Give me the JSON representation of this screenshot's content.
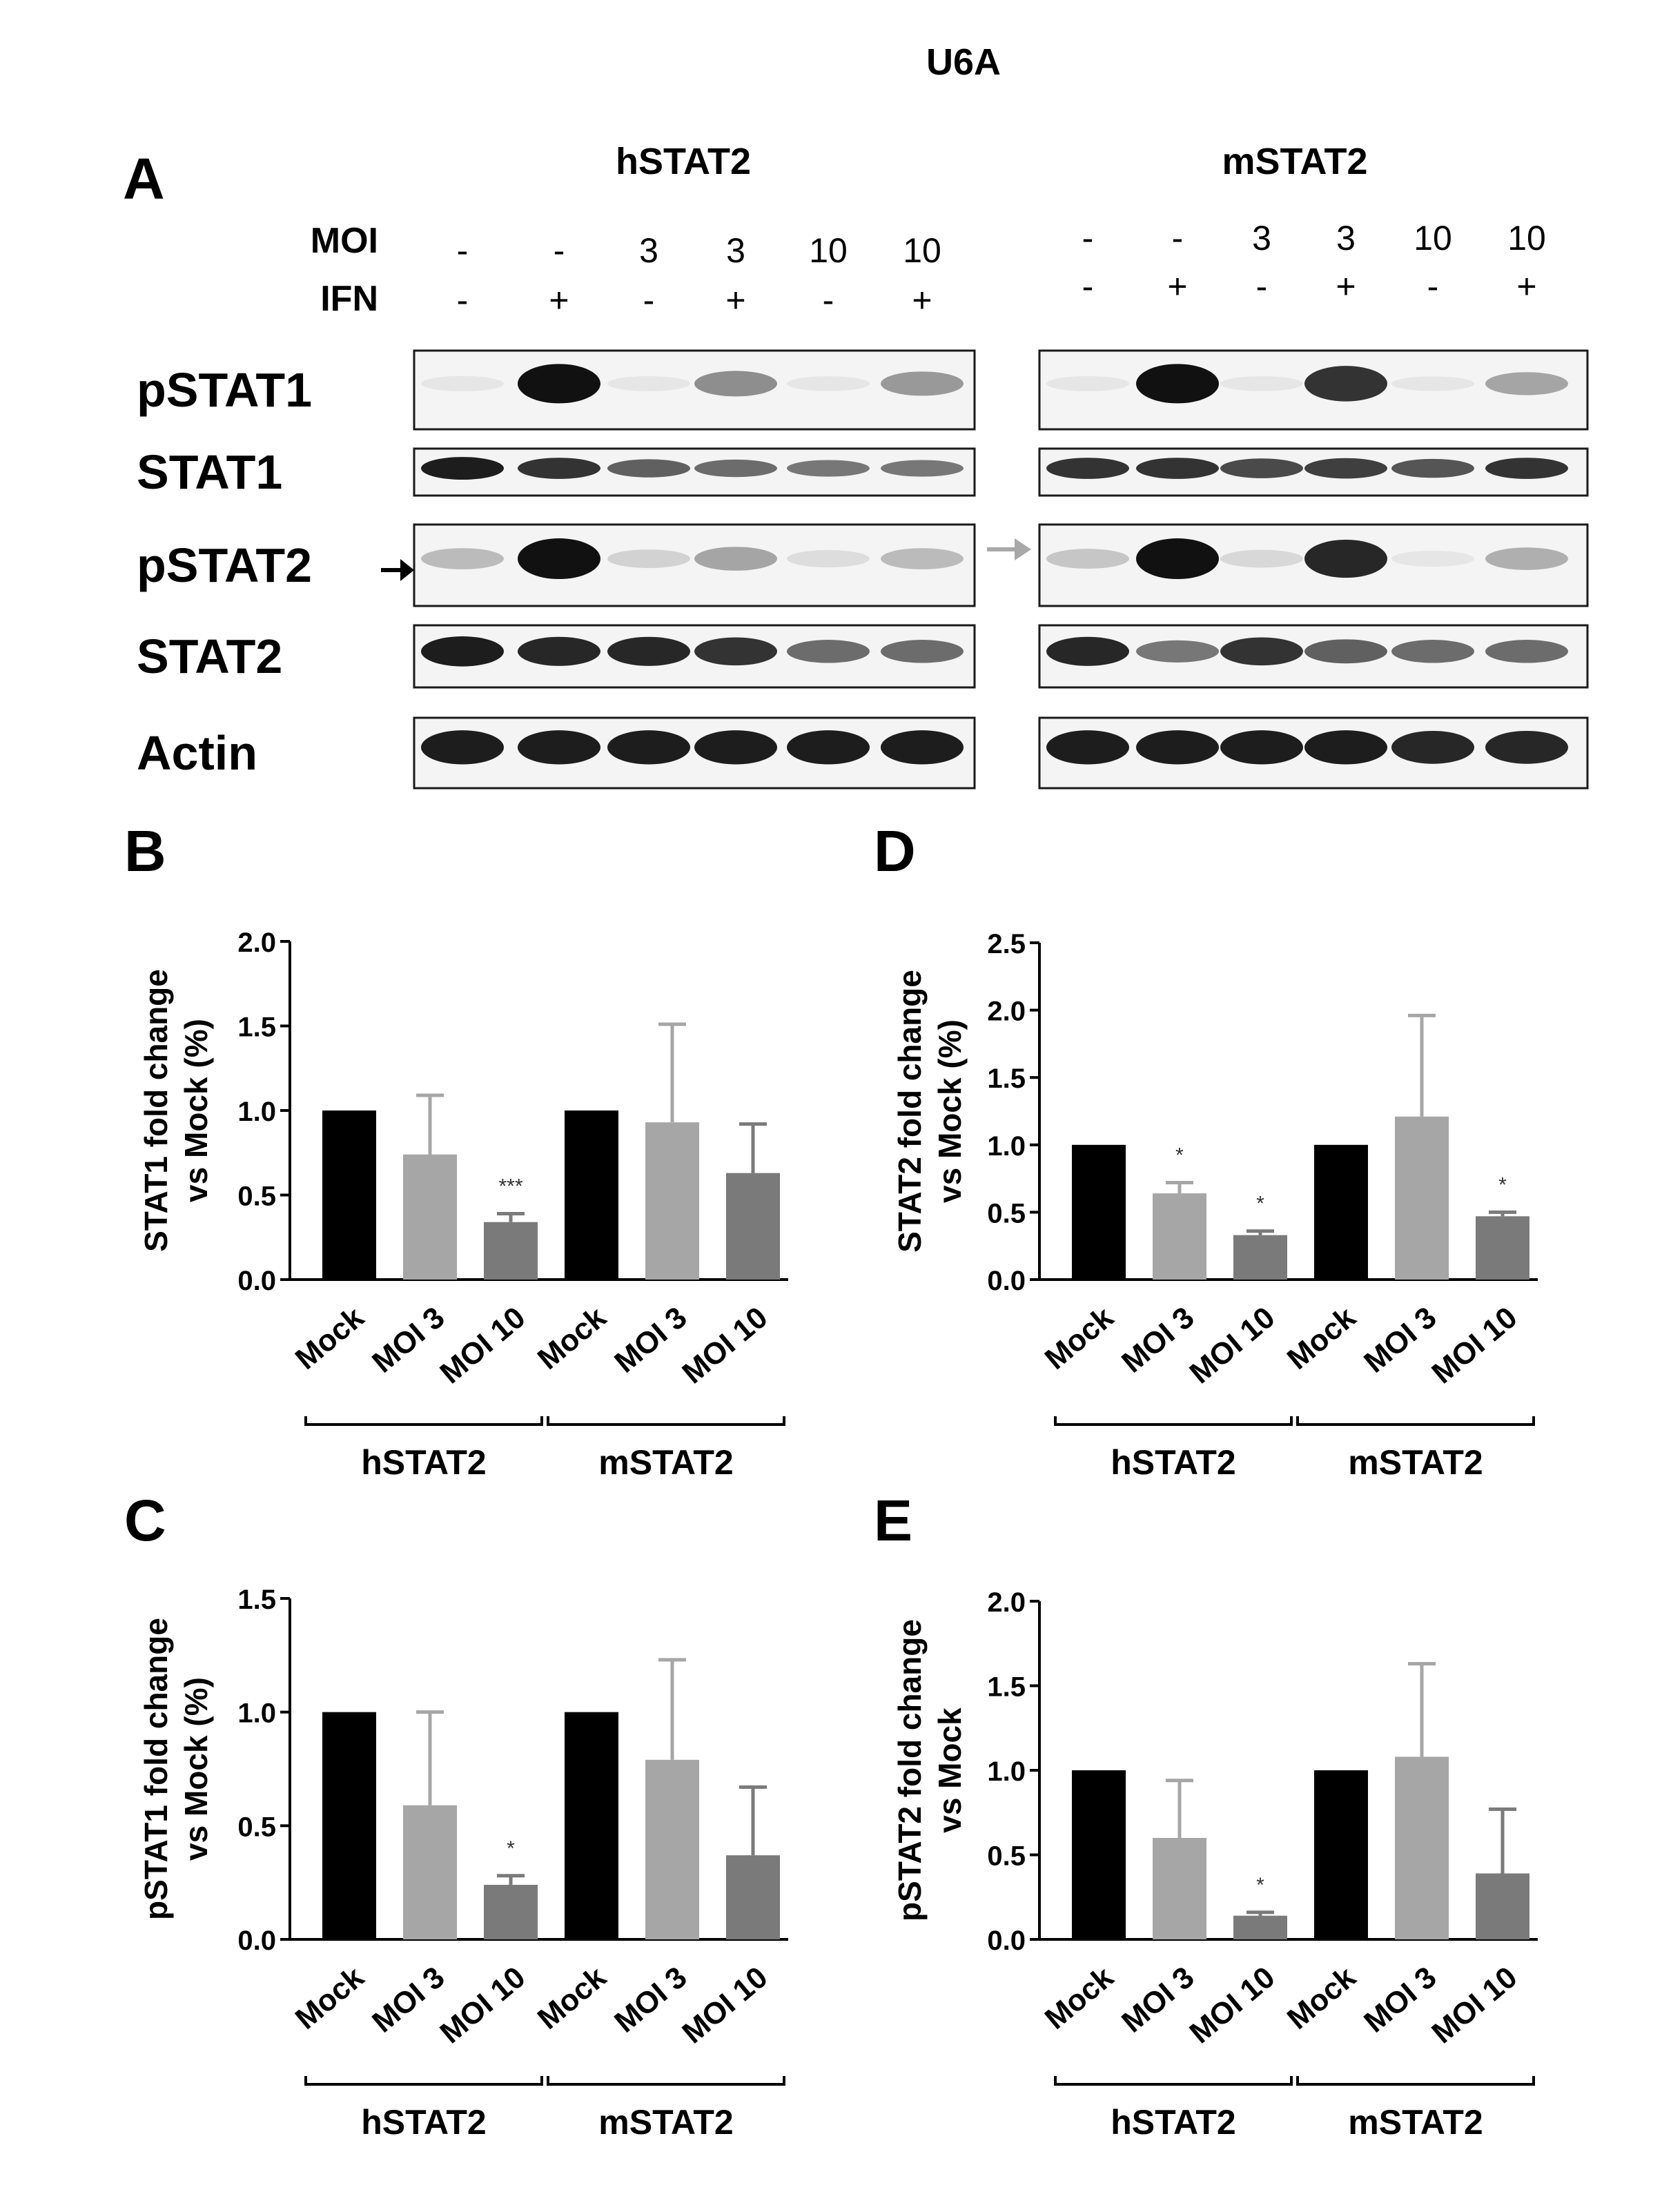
{
  "figure_title": "U6A",
  "panel_a": {
    "letter": "A",
    "groups": [
      {
        "name": "hSTAT2",
        "moi": [
          "-",
          "-",
          "3",
          "3",
          "10",
          "10"
        ],
        "ifn": [
          "-",
          "+",
          "-",
          "+",
          "-",
          "+"
        ]
      },
      {
        "name": "mSTAT2",
        "moi": [
          "-",
          "-",
          "3",
          "3",
          "10",
          "10"
        ],
        "ifn": [
          "-",
          "+",
          "-",
          "+",
          "-",
          "+"
        ]
      }
    ],
    "row_header_moi": "MOI",
    "row_header_ifn": "IFN",
    "blots": [
      {
        "label": "pSTAT1",
        "levels": [
          [
            0.05,
            1.0,
            0.04,
            0.45,
            0.03,
            0.4
          ],
          [
            0.04,
            1.0,
            0.03,
            0.85,
            0.02,
            0.35
          ]
        ]
      },
      {
        "label": "STAT1",
        "levels": [
          [
            0.95,
            0.85,
            0.65,
            0.6,
            0.55,
            0.55
          ],
          [
            0.85,
            0.85,
            0.75,
            0.8,
            0.7,
            0.85
          ]
        ]
      },
      {
        "label": "pSTAT2",
        "levels": [
          [
            0.25,
            1.0,
            0.15,
            0.35,
            0.1,
            0.25
          ],
          [
            0.2,
            1.0,
            0.12,
            0.9,
            0.05,
            0.3
          ]
        ]
      },
      {
        "label": "STAT2",
        "levels": [
          [
            0.95,
            0.9,
            0.9,
            0.85,
            0.6,
            0.6
          ],
          [
            0.9,
            0.55,
            0.85,
            0.65,
            0.6,
            0.6
          ]
        ]
      },
      {
        "label": "Actin",
        "levels": [
          [
            0.95,
            0.95,
            0.95,
            0.95,
            0.95,
            0.95
          ],
          [
            0.95,
            0.95,
            0.95,
            0.95,
            0.9,
            0.9
          ]
        ]
      }
    ]
  },
  "chart_data": [
    {
      "panel": "B",
      "type": "bar",
      "ylabel": [
        "STAT1 fold change",
        "vs Mock (%)"
      ],
      "ylim": [
        0,
        2.0
      ],
      "yticks": [
        "0.0",
        "0.5",
        "1.0",
        "1.5",
        "2.0"
      ],
      "categories": [
        "Mock",
        "MOI 3",
        "MOI 10",
        "Mock",
        "MOI 3",
        "MOI 10"
      ],
      "values": [
        1.0,
        0.74,
        0.34,
        1.0,
        0.93,
        0.63
      ],
      "errors": [
        0,
        0.35,
        0.05,
        0,
        0.58,
        0.29
      ],
      "significance": [
        "",
        "",
        "***",
        "",
        "",
        ""
      ],
      "bar_colors": [
        "#000000",
        "#a6a6a6",
        "#7a7a7a",
        "#000000",
        "#a6a6a6",
        "#7a7a7a"
      ],
      "groups": [
        "hSTAT2",
        "mSTAT2"
      ]
    },
    {
      "panel": "D",
      "type": "bar",
      "ylabel": [
        "STAT2 fold change",
        "vs Mock (%)"
      ],
      "ylim": [
        0,
        2.5
      ],
      "yticks": [
        "0.0",
        "0.5",
        "1.0",
        "1.5",
        "2.0",
        "2.5"
      ],
      "categories": [
        "Mock",
        "MOI 3",
        "MOI 10",
        "Mock",
        "MOI 3",
        "MOI 10"
      ],
      "values": [
        1.0,
        0.64,
        0.33,
        1.0,
        1.21,
        0.47
      ],
      "errors": [
        0,
        0.08,
        0.03,
        0,
        0.75,
        0.03
      ],
      "significance": [
        "",
        "*",
        "*",
        "",
        "",
        "*"
      ],
      "bar_colors": [
        "#000000",
        "#a6a6a6",
        "#7a7a7a",
        "#000000",
        "#a6a6a6",
        "#7a7a7a"
      ],
      "groups": [
        "hSTAT2",
        "mSTAT2"
      ]
    },
    {
      "panel": "C",
      "type": "bar",
      "ylabel": [
        "pSTAT1 fold change",
        "vs Mock (%)"
      ],
      "ylim": [
        0,
        1.5
      ],
      "yticks": [
        "0.0",
        "0.5",
        "1.0",
        "1.5"
      ],
      "categories": [
        "Mock",
        "MOI 3",
        "MOI 10",
        "Mock",
        "MOI 3",
        "MOI 10"
      ],
      "values": [
        1.0,
        0.59,
        0.24,
        1.0,
        0.79,
        0.37
      ],
      "errors": [
        0,
        0.41,
        0.04,
        0,
        0.44,
        0.3
      ],
      "significance": [
        "",
        "",
        "*",
        "",
        "",
        ""
      ],
      "bar_colors": [
        "#000000",
        "#a6a6a6",
        "#7a7a7a",
        "#000000",
        "#a6a6a6",
        "#7a7a7a"
      ],
      "groups": [
        "hSTAT2",
        "mSTAT2"
      ]
    },
    {
      "panel": "E",
      "type": "bar",
      "ylabel": [
        "pSTAT2 fold change",
        "vs Mock"
      ],
      "ylim": [
        0,
        2.0
      ],
      "yticks": [
        "0.0",
        "0.5",
        "1.0",
        "1.5",
        "2.0"
      ],
      "categories": [
        "Mock",
        "MOI 3",
        "MOI 10",
        "Mock",
        "MOI 3",
        "MOI 10"
      ],
      "values": [
        1.0,
        0.6,
        0.14,
        1.0,
        1.08,
        0.39
      ],
      "errors": [
        0,
        0.34,
        0.02,
        0,
        0.55,
        0.38
      ],
      "significance": [
        "",
        "",
        "*",
        "",
        "",
        ""
      ],
      "bar_colors": [
        "#000000",
        "#a6a6a6",
        "#7a7a7a",
        "#000000",
        "#a6a6a6",
        "#7a7a7a"
      ],
      "groups": [
        "hSTAT2",
        "mSTAT2"
      ]
    }
  ]
}
